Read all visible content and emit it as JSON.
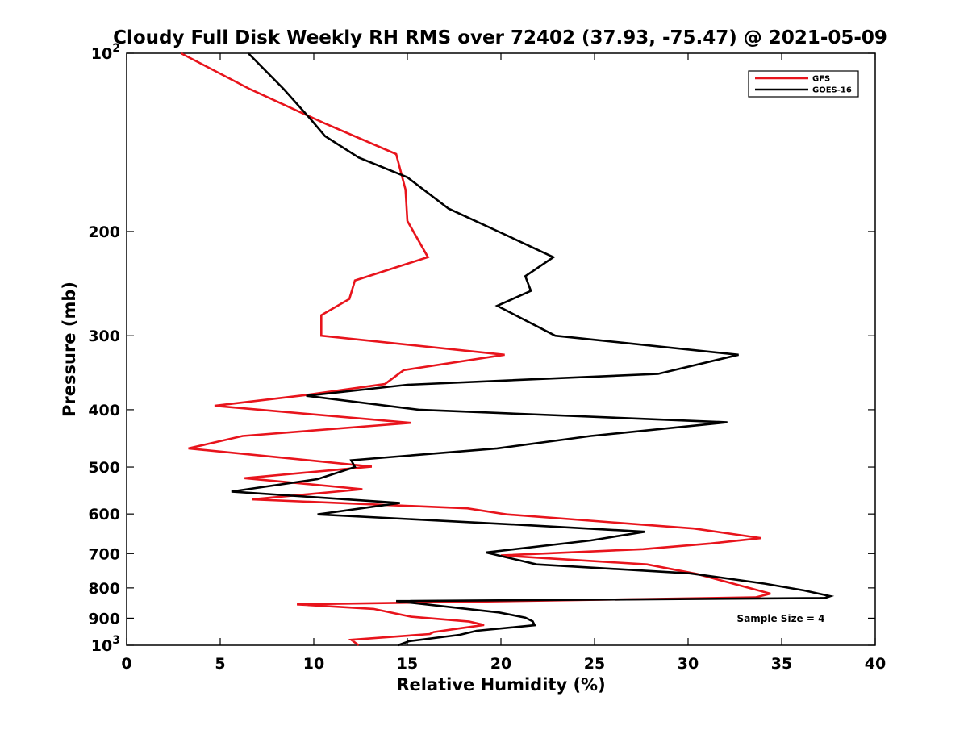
{
  "chart_data": {
    "type": "line",
    "title": "Cloudy Full Disk Weekly RH RMS over 72402 (37.93, -75.47) @ 2021-05-09",
    "xlabel": "Relative Humidity (%)",
    "ylabel": "Pressure (mb)",
    "xlim": [
      0,
      40
    ],
    "ylim": [
      100,
      1000
    ],
    "y_scale": "log",
    "y_reversed": true,
    "x_ticks": [
      "0",
      "5",
      "10",
      "15",
      "20",
      "25",
      "30",
      "35",
      "40"
    ],
    "y_ticks": [
      {
        "value": 100,
        "base": "10",
        "exp": "2"
      },
      {
        "value": 200,
        "label": "200"
      },
      {
        "value": 300,
        "label": "300"
      },
      {
        "value": 400,
        "label": "400"
      },
      {
        "value": 500,
        "label": "500"
      },
      {
        "value": 600,
        "label": "600"
      },
      {
        "value": 700,
        "label": "700"
      },
      {
        "value": 800,
        "label": "800"
      },
      {
        "value": 900,
        "label": "900"
      },
      {
        "value": 1000,
        "base": "10",
        "exp": "3"
      }
    ],
    "grid": false,
    "legend_position": "top-right",
    "annotation": "Sample Size = 4",
    "series": [
      {
        "name": "GFS",
        "color": "#e8141c",
        "points": [
          [
            2.9,
            100
          ],
          [
            6.6,
            115
          ],
          [
            10.5,
            131
          ],
          [
            14.4,
            148
          ],
          [
            14.9,
            170
          ],
          [
            15.0,
            192
          ],
          [
            16.1,
            221
          ],
          [
            12.2,
            242
          ],
          [
            11.9,
            260
          ],
          [
            10.4,
            277
          ],
          [
            10.4,
            300
          ],
          [
            20.2,
            323
          ],
          [
            14.8,
            343
          ],
          [
            13.8,
            362
          ],
          [
            9.5,
            378
          ],
          [
            4.7,
            394
          ],
          [
            15.2,
            421
          ],
          [
            6.2,
            443
          ],
          [
            3.3,
            465
          ],
          [
            13.1,
            499
          ],
          [
            6.3,
            522
          ],
          [
            12.6,
            545
          ],
          [
            6.7,
            567
          ],
          [
            18.2,
            587
          ],
          [
            20.3,
            601
          ],
          [
            30.3,
            635
          ],
          [
            33.9,
            659
          ],
          [
            31.2,
            673
          ],
          [
            27.6,
            688
          ],
          [
            20.0,
            705
          ],
          [
            27.8,
            730
          ],
          [
            30.5,
            758
          ],
          [
            34.4,
            818
          ],
          [
            33.6,
            830
          ],
          [
            9.1,
            853
          ],
          [
            13.2,
            868
          ],
          [
            15.2,
            895
          ],
          [
            18.3,
            912
          ],
          [
            19.1,
            924
          ],
          [
            17.7,
            937
          ],
          [
            16.4,
            950
          ],
          [
            16.2,
            957
          ],
          [
            12.0,
            979
          ],
          [
            12.4,
            1000
          ]
        ]
      },
      {
        "name": "GOES-16",
        "color": "#000000",
        "points": [
          [
            6.5,
            100
          ],
          [
            8.4,
            115
          ],
          [
            9.9,
            130
          ],
          [
            10.6,
            138
          ],
          [
            12.4,
            150
          ],
          [
            15.0,
            162
          ],
          [
            17.2,
            183
          ],
          [
            20.0,
            201
          ],
          [
            22.8,
            221
          ],
          [
            21.3,
            238
          ],
          [
            21.6,
            252
          ],
          [
            19.8,
            267
          ],
          [
            22.9,
            300
          ],
          [
            32.7,
            323
          ],
          [
            28.4,
            348
          ],
          [
            15.0,
            363
          ],
          [
            9.6,
            379
          ],
          [
            15.6,
            400
          ],
          [
            32.1,
            420
          ],
          [
            24.8,
            443
          ],
          [
            19.8,
            465
          ],
          [
            12.0,
            487
          ],
          [
            12.2,
            500
          ],
          [
            10.2,
            524
          ],
          [
            5.6,
            550
          ],
          [
            14.6,
            575
          ],
          [
            10.2,
            601
          ],
          [
            21.1,
            626
          ],
          [
            27.7,
            643
          ],
          [
            24.8,
            665
          ],
          [
            19.2,
            697
          ],
          [
            21.9,
            730
          ],
          [
            30.1,
            756
          ],
          [
            34.1,
            787
          ],
          [
            36.2,
            808
          ],
          [
            37.6,
            826
          ],
          [
            37.3,
            832
          ],
          [
            14.4,
            842
          ],
          [
            19.9,
            880
          ],
          [
            21.3,
            898
          ],
          [
            21.7,
            911
          ],
          [
            21.8,
            925
          ],
          [
            18.7,
            945
          ],
          [
            17.8,
            960
          ],
          [
            15.1,
            984
          ],
          [
            14.5,
            1000
          ]
        ]
      }
    ]
  }
}
